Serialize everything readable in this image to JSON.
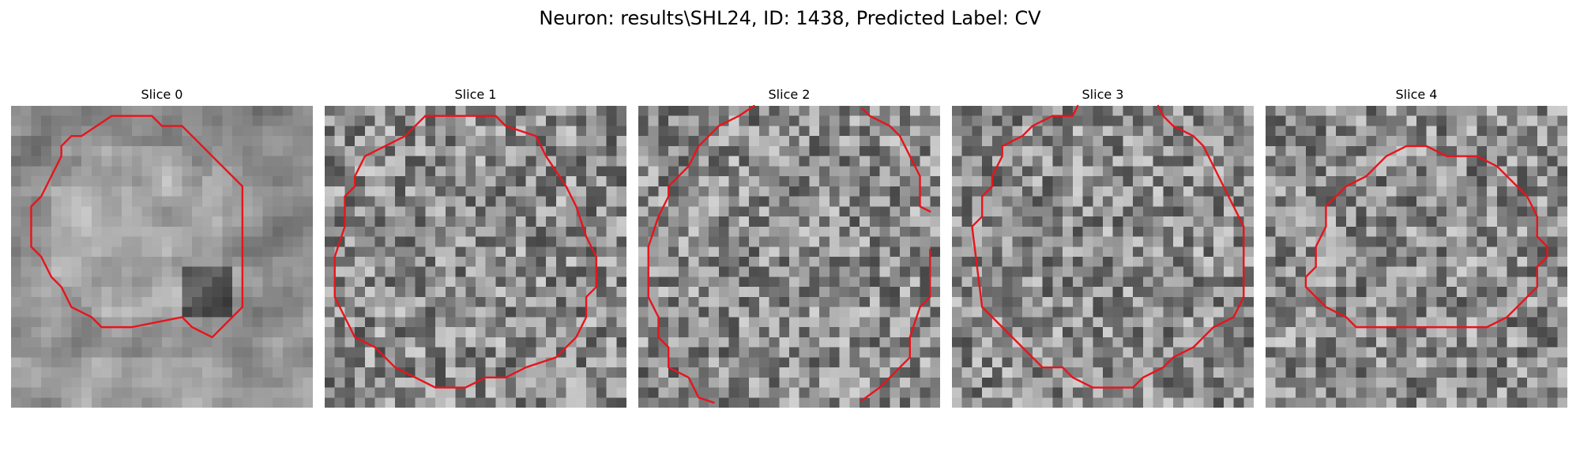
{
  "figure": {
    "title": "Neuron: results\\SHL24, ID: 1438, Predicted Label: CV",
    "contour_color": "#e8141c"
  },
  "slices": [
    {
      "title": "Slice 0",
      "seed": 11,
      "blur": true
    },
    {
      "title": "Slice 1",
      "seed": 23,
      "blur": false
    },
    {
      "title": "Slice 2",
      "seed": 37,
      "blur": false
    },
    {
      "title": "Slice 3",
      "seed": 53,
      "blur": false
    },
    {
      "title": "Slice 4",
      "seed": 71,
      "blur": false
    }
  ]
}
